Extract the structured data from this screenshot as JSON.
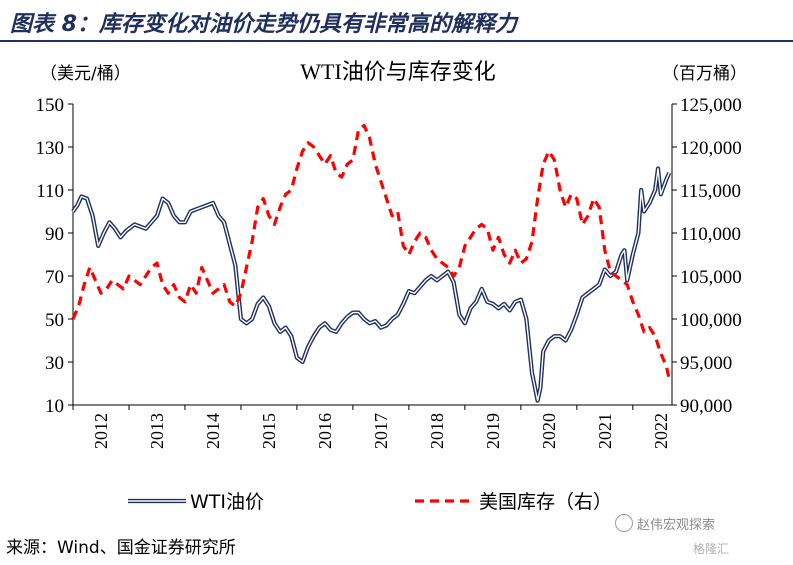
{
  "figure": {
    "title": "图表 8：库存变化对油价走势仍具有非常高的解释力",
    "source": "来源：Wind、国金证券研究所",
    "watermark": "赵伟宏观探索",
    "watermark2": "格隆汇"
  },
  "chart_data": {
    "type": "line",
    "title": "WTI油价与库存变化",
    "left_unit": "（美元/桶）",
    "right_unit": "（百万桶）",
    "x_ticks": [
      "2012",
      "2013",
      "2014",
      "2015",
      "2016",
      "2017",
      "2018",
      "2019",
      "2020",
      "2021",
      "2022"
    ],
    "xlim": [
      2012.0,
      2022.7
    ],
    "ylim_left": [
      10,
      150
    ],
    "yticks_left": [
      "10",
      "30",
      "50",
      "70",
      "90",
      "110",
      "130",
      "150"
    ],
    "ylim_right": [
      90000,
      125000
    ],
    "yticks_right": [
      "90,000",
      "95,000",
      "100,000",
      "105,000",
      "110,000",
      "115,000",
      "120,000",
      "125,000"
    ],
    "legend_position": "bottom",
    "series": [
      {
        "name": "WTI油价",
        "axis": "left",
        "color": "#1f2f5e",
        "style": "double-line",
        "points": [
          [
            2012.0,
            100
          ],
          [
            2012.08,
            103
          ],
          [
            2012.15,
            107
          ],
          [
            2012.25,
            106
          ],
          [
            2012.35,
            98
          ],
          [
            2012.45,
            84
          ],
          [
            2012.55,
            90
          ],
          [
            2012.65,
            95
          ],
          [
            2012.75,
            92
          ],
          [
            2012.85,
            88
          ],
          [
            2012.95,
            91
          ],
          [
            2013.1,
            94
          ],
          [
            2013.2,
            93
          ],
          [
            2013.3,
            92
          ],
          [
            2013.4,
            95
          ],
          [
            2013.5,
            98
          ],
          [
            2013.6,
            106
          ],
          [
            2013.7,
            104
          ],
          [
            2013.8,
            98
          ],
          [
            2013.9,
            95
          ],
          [
            2014.0,
            95
          ],
          [
            2014.1,
            100
          ],
          [
            2014.2,
            101
          ],
          [
            2014.3,
            102
          ],
          [
            2014.4,
            103
          ],
          [
            2014.5,
            104
          ],
          [
            2014.6,
            98
          ],
          [
            2014.7,
            95
          ],
          [
            2014.8,
            85
          ],
          [
            2014.9,
            75
          ],
          [
            2015.0,
            50
          ],
          [
            2015.1,
            48
          ],
          [
            2015.2,
            50
          ],
          [
            2015.3,
            57
          ],
          [
            2015.4,
            60
          ],
          [
            2015.5,
            56
          ],
          [
            2015.6,
            48
          ],
          [
            2015.7,
            44
          ],
          [
            2015.8,
            46
          ],
          [
            2015.9,
            42
          ],
          [
            2016.0,
            32
          ],
          [
            2016.1,
            30
          ],
          [
            2016.2,
            37
          ],
          [
            2016.3,
            42
          ],
          [
            2016.4,
            46
          ],
          [
            2016.5,
            48
          ],
          [
            2016.6,
            45
          ],
          [
            2016.7,
            44
          ],
          [
            2016.8,
            48
          ],
          [
            2016.9,
            51
          ],
          [
            2017.0,
            53
          ],
          [
            2017.1,
            53
          ],
          [
            2017.2,
            50
          ],
          [
            2017.3,
            48
          ],
          [
            2017.4,
            49
          ],
          [
            2017.5,
            46
          ],
          [
            2017.6,
            47
          ],
          [
            2017.7,
            50
          ],
          [
            2017.8,
            52
          ],
          [
            2017.9,
            57
          ],
          [
            2018.0,
            63
          ],
          [
            2018.1,
            62
          ],
          [
            2018.2,
            65
          ],
          [
            2018.3,
            68
          ],
          [
            2018.4,
            70
          ],
          [
            2018.5,
            68
          ],
          [
            2018.6,
            70
          ],
          [
            2018.7,
            72
          ],
          [
            2018.8,
            67
          ],
          [
            2018.9,
            52
          ],
          [
            2019.0,
            48
          ],
          [
            2019.1,
            55
          ],
          [
            2019.2,
            58
          ],
          [
            2019.3,
            64
          ],
          [
            2019.4,
            58
          ],
          [
            2019.5,
            57
          ],
          [
            2019.6,
            55
          ],
          [
            2019.7,
            57
          ],
          [
            2019.8,
            54
          ],
          [
            2019.9,
            58
          ],
          [
            2020.0,
            59
          ],
          [
            2020.1,
            50
          ],
          [
            2020.2,
            25
          ],
          [
            2020.3,
            12
          ],
          [
            2020.35,
            18
          ],
          [
            2020.4,
            35
          ],
          [
            2020.5,
            40
          ],
          [
            2020.6,
            42
          ],
          [
            2020.7,
            42
          ],
          [
            2020.8,
            40
          ],
          [
            2020.9,
            45
          ],
          [
            2021.0,
            52
          ],
          [
            2021.1,
            60
          ],
          [
            2021.2,
            62
          ],
          [
            2021.3,
            64
          ],
          [
            2021.4,
            66
          ],
          [
            2021.5,
            73
          ],
          [
            2021.6,
            70
          ],
          [
            2021.7,
            72
          ],
          [
            2021.8,
            80
          ],
          [
            2021.85,
            82
          ],
          [
            2021.9,
            68
          ],
          [
            2022.0,
            80
          ],
          [
            2022.1,
            90
          ],
          [
            2022.15,
            110
          ],
          [
            2022.2,
            100
          ],
          [
            2022.3,
            104
          ],
          [
            2022.4,
            110
          ],
          [
            2022.45,
            120
          ],
          [
            2022.5,
            108
          ],
          [
            2022.6,
            115
          ],
          [
            2022.65,
            118
          ]
        ]
      },
      {
        "name": "美国库存（右）",
        "axis": "right",
        "color": "#ff0000",
        "style": "dashed",
        "points": [
          [
            2012.0,
            100000
          ],
          [
            2012.1,
            101500
          ],
          [
            2012.2,
            104000
          ],
          [
            2012.3,
            106000
          ],
          [
            2012.4,
            104500
          ],
          [
            2012.5,
            103000
          ],
          [
            2012.6,
            103500
          ],
          [
            2012.7,
            104500
          ],
          [
            2012.8,
            104000
          ],
          [
            2012.9,
            103500
          ],
          [
            2013.0,
            105000
          ],
          [
            2013.1,
            104500
          ],
          [
            2013.2,
            104000
          ],
          [
            2013.3,
            105000
          ],
          [
            2013.4,
            106000
          ],
          [
            2013.5,
            106500
          ],
          [
            2013.6,
            104000
          ],
          [
            2013.7,
            103000
          ],
          [
            2013.8,
            104000
          ],
          [
            2013.9,
            102500
          ],
          [
            2014.0,
            102000
          ],
          [
            2014.1,
            104000
          ],
          [
            2014.2,
            103000
          ],
          [
            2014.3,
            106000
          ],
          [
            2014.4,
            104500
          ],
          [
            2014.5,
            103000
          ],
          [
            2014.6,
            103500
          ],
          [
            2014.7,
            104000
          ],
          [
            2014.8,
            102000
          ],
          [
            2014.9,
            101500
          ],
          [
            2015.0,
            103000
          ],
          [
            2015.1,
            106000
          ],
          [
            2015.2,
            109000
          ],
          [
            2015.3,
            113000
          ],
          [
            2015.4,
            114000
          ],
          [
            2015.5,
            112000
          ],
          [
            2015.6,
            111000
          ],
          [
            2015.7,
            113000
          ],
          [
            2015.8,
            114500
          ],
          [
            2015.9,
            115000
          ],
          [
            2016.0,
            117500
          ],
          [
            2016.1,
            119500
          ],
          [
            2016.2,
            120500
          ],
          [
            2016.3,
            120000
          ],
          [
            2016.4,
            119000
          ],
          [
            2016.5,
            118000
          ],
          [
            2016.6,
            119000
          ],
          [
            2016.7,
            117000
          ],
          [
            2016.8,
            116500
          ],
          [
            2016.9,
            118000
          ],
          [
            2017.0,
            118500
          ],
          [
            2017.1,
            122000
          ],
          [
            2017.2,
            122500
          ],
          [
            2017.3,
            121000
          ],
          [
            2017.4,
            118000
          ],
          [
            2017.5,
            116000
          ],
          [
            2017.6,
            114000
          ],
          [
            2017.7,
            112000
          ],
          [
            2017.8,
            112500
          ],
          [
            2017.9,
            108500
          ],
          [
            2018.0,
            107500
          ],
          [
            2018.1,
            109000
          ],
          [
            2018.2,
            110000
          ],
          [
            2018.3,
            109500
          ],
          [
            2018.4,
            108000
          ],
          [
            2018.5,
            107000
          ],
          [
            2018.6,
            106500
          ],
          [
            2018.7,
            106000
          ],
          [
            2018.8,
            105000
          ],
          [
            2018.9,
            106000
          ],
          [
            2019.0,
            108500
          ],
          [
            2019.1,
            109500
          ],
          [
            2019.2,
            110500
          ],
          [
            2019.3,
            111000
          ],
          [
            2019.4,
            110500
          ],
          [
            2019.5,
            108000
          ],
          [
            2019.6,
            109500
          ],
          [
            2019.7,
            107500
          ],
          [
            2019.8,
            106500
          ],
          [
            2019.9,
            108000
          ],
          [
            2020.0,
            106500
          ],
          [
            2020.1,
            107000
          ],
          [
            2020.2,
            109000
          ],
          [
            2020.3,
            114000
          ],
          [
            2020.4,
            118000
          ],
          [
            2020.5,
            119500
          ],
          [
            2020.6,
            118500
          ],
          [
            2020.7,
            115000
          ],
          [
            2020.8,
            113000
          ],
          [
            2020.9,
            114500
          ],
          [
            2021.0,
            114000
          ],
          [
            2021.1,
            111000
          ],
          [
            2021.2,
            112000
          ],
          [
            2021.3,
            114000
          ],
          [
            2021.4,
            113000
          ],
          [
            2021.5,
            108000
          ],
          [
            2021.6,
            105500
          ],
          [
            2021.7,
            105000
          ],
          [
            2021.8,
            104500
          ],
          [
            2021.9,
            104000
          ],
          [
            2022.0,
            102000
          ],
          [
            2022.1,
            100500
          ],
          [
            2022.2,
            98500
          ],
          [
            2022.3,
            99000
          ],
          [
            2022.4,
            98000
          ],
          [
            2022.5,
            96000
          ],
          [
            2022.6,
            94500
          ],
          [
            2022.65,
            93000
          ]
        ]
      }
    ]
  }
}
